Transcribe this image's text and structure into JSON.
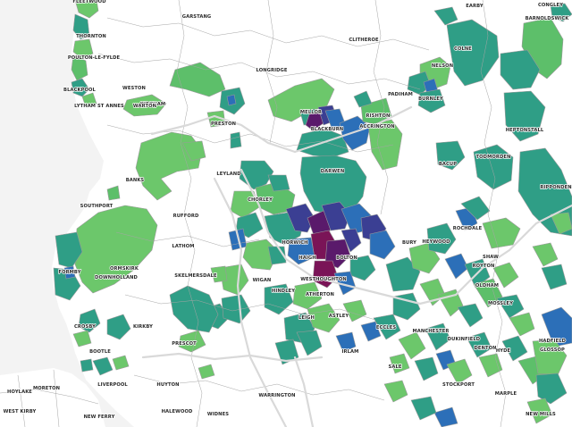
{
  "map": {
    "colors": {
      "light_green": "#6cc76b",
      "green": "#5dbf6a",
      "teal": "#2f9e86",
      "teal_dark": "#1f7f88",
      "blue": "#2c6fb8",
      "navy": "#3b3f93",
      "purple": "#5a1a6b",
      "plum": "#7a1457",
      "no_data": "#ffffff"
    },
    "places": [
      {
        "name": "FLEETWOOD"
      },
      {
        "name": "GARSTANG"
      },
      {
        "name": "CONGLEY"
      },
      {
        "name": "EARBY"
      },
      {
        "name": "BARNOLDSWICK"
      },
      {
        "name": "THORNTON"
      },
      {
        "name": "POULTON-LE-FYLDE"
      },
      {
        "name": "CLITHEROE"
      },
      {
        "name": "COLNE"
      },
      {
        "name": "BLACKPOOL"
      },
      {
        "name": "WESTON"
      },
      {
        "name": "LONGRIDGE"
      },
      {
        "name": "NELSON"
      },
      {
        "name": "PADIHAM"
      },
      {
        "name": "KIRKHAM"
      },
      {
        "name": "MELLOR"
      },
      {
        "name": "BURNLEY"
      },
      {
        "name": "LYTHAM ST ANNES"
      },
      {
        "name": "WARTON"
      },
      {
        "name": "PRESTON"
      },
      {
        "name": "RISHTON"
      },
      {
        "name": "BLACKBURN"
      },
      {
        "name": "ACCRINGTON"
      },
      {
        "name": "HEPTONSTALL"
      },
      {
        "name": "DARWEN"
      },
      {
        "name": "BACUP"
      },
      {
        "name": "TODMORDEN"
      },
      {
        "name": "BANKS"
      },
      {
        "name": "LEYLAND"
      },
      {
        "name": "RIPPONDEN"
      },
      {
        "name": "SOUTHPORT"
      },
      {
        "name": "CHORLEY"
      },
      {
        "name": "RUFFORD"
      },
      {
        "name": "ROCHDALE"
      },
      {
        "name": "HEYWOOD"
      },
      {
        "name": "HORWICH"
      },
      {
        "name": "BURY"
      },
      {
        "name": "LATHOM"
      },
      {
        "name": "BOLTON"
      },
      {
        "name": "SHAW"
      },
      {
        "name": "FORMBY"
      },
      {
        "name": "ORMSKIRK"
      },
      {
        "name": "HAIGH"
      },
      {
        "name": "ROYTON"
      },
      {
        "name": "SKELMERSDALE"
      },
      {
        "name": "WESTHOUGHTON"
      },
      {
        "name": "OLDHAM"
      },
      {
        "name": "DOWNHOLLAND"
      },
      {
        "name": "WIGAN"
      },
      {
        "name": "HINDLEY"
      },
      {
        "name": "ATHERTON"
      },
      {
        "name": "MOSSLEY"
      },
      {
        "name": "LEIGH"
      },
      {
        "name": "ASTLEY"
      },
      {
        "name": "ECCLES"
      },
      {
        "name": "CROSBY"
      },
      {
        "name": "KIRKBY"
      },
      {
        "name": "MANCHESTER"
      },
      {
        "name": "HADFIELD"
      },
      {
        "name": "DUKINFIELD"
      },
      {
        "name": "DENTON"
      },
      {
        "name": "GLOSSOP"
      },
      {
        "name": "BOOTLE"
      },
      {
        "name": "IRLAM"
      },
      {
        "name": "HYDE"
      },
      {
        "name": "PRESCOT"
      },
      {
        "name": "SALE"
      },
      {
        "name": "STOCKPORT"
      },
      {
        "name": "HOYLAKE"
      },
      {
        "name": "MORETON"
      },
      {
        "name": "LIVERPOOL"
      },
      {
        "name": "HUYTON"
      },
      {
        "name": "WARRINGTON"
      },
      {
        "name": "MARPLE"
      },
      {
        "name": "WEST KIRBY"
      },
      {
        "name": "NEW FERRY"
      },
      {
        "name": "HALEWOOD"
      },
      {
        "name": "WIDNES"
      },
      {
        "name": "NEW MILLS"
      }
    ]
  }
}
